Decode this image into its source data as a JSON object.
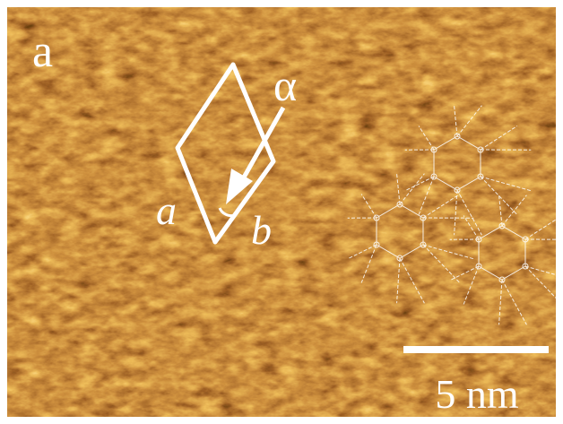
{
  "panel_label": "a",
  "angle_label": "α",
  "lattice_label_a": "a",
  "lattice_label_b": "b",
  "scale_bar_label": "5 nm"
}
